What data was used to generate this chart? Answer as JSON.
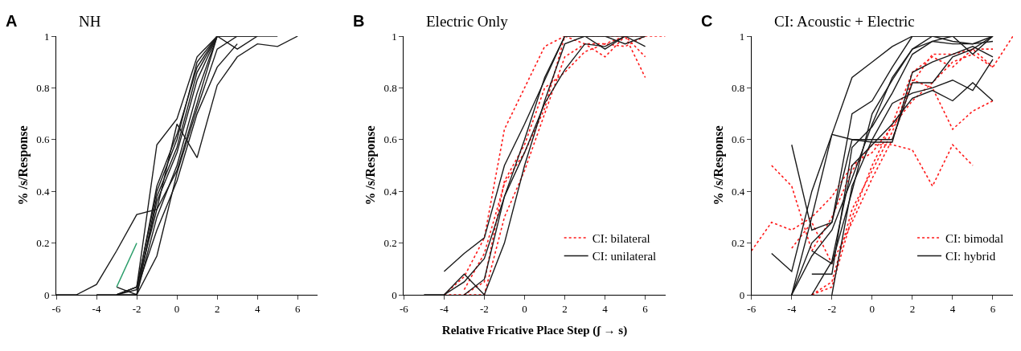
{
  "chart_data": [
    {
      "type": "line",
      "title": "NH",
      "ylabel": "% /s/Response",
      "annotations": [
        "A"
      ],
      "xlim": [
        -6,
        7
      ],
      "xticks": [
        -6,
        -4,
        -2,
        0,
        2,
        4,
        6
      ],
      "ylim": [
        0,
        1
      ],
      "yticks": [
        0,
        0.2,
        0.4,
        0.6,
        0.8,
        1
      ],
      "legend": false,
      "series": [
        {
          "color": "#1a1a1a",
          "line_style": "solid",
          "x": [
            -6,
            -5,
            -4,
            -3,
            -2,
            -1,
            0,
            1,
            2,
            3,
            4,
            5,
            6
          ],
          "values": [
            0,
            0,
            0.04,
            0.17,
            0.31,
            0.33,
            0.66,
            0.53,
            0.81,
            0.92,
            0.97,
            0.96,
            1
          ]
        },
        {
          "color": "#1a1a1a",
          "line_style": "solid",
          "x": [
            -3,
            -2,
            -1,
            0,
            1,
            2
          ],
          "values": [
            0,
            0.03,
            0.58,
            0.68,
            0.92,
            1
          ]
        },
        {
          "color": "#1a1a1a",
          "line_style": "solid",
          "x": [
            -3,
            -2,
            -1,
            0,
            1,
            2,
            3,
            4
          ],
          "values": [
            0,
            0.02,
            0.42,
            0.62,
            0.88,
            1,
            0.95,
            1
          ]
        },
        {
          "color": "#1a1a1a",
          "line_style": "solid",
          "x": [
            -3,
            -2,
            -1,
            0,
            1,
            2,
            3
          ],
          "values": [
            0,
            0,
            0.36,
            0.55,
            0.83,
            1,
            1
          ]
        },
        {
          "color": "#1a1a1a",
          "line_style": "solid",
          "x": [
            -2,
            -1,
            0,
            1,
            2
          ],
          "values": [
            0,
            0.3,
            0.5,
            0.78,
            1
          ]
        },
        {
          "color": "#1a1a1a",
          "line_style": "solid",
          "x": [
            -2,
            -1,
            0,
            1,
            2,
            3,
            4
          ],
          "values": [
            0,
            0.15,
            0.47,
            0.72,
            0.95,
            1,
            1
          ]
        },
        {
          "color": "#1a1a1a",
          "line_style": "solid",
          "x": [
            -3,
            -2,
            -1,
            0,
            1,
            2
          ],
          "values": [
            0.03,
            0,
            0.38,
            0.57,
            0.86,
            1
          ]
        },
        {
          "color": "#1a1a1a",
          "line_style": "solid",
          "x": [
            -2,
            -1,
            0,
            1,
            2,
            3
          ],
          "values": [
            0.02,
            0.25,
            0.44,
            0.7,
            0.88,
            0.97
          ]
        },
        {
          "color": "#1a1a1a",
          "line_style": "solid",
          "x": [
            -4,
            -3,
            -2,
            -1,
            0,
            1,
            2
          ],
          "values": [
            0,
            0,
            0.03,
            0.33,
            0.48,
            0.74,
            1
          ]
        },
        {
          "color": "#1a1a1a",
          "line_style": "solid",
          "x": [
            -3,
            -2,
            -1,
            0,
            1,
            2,
            3,
            4,
            5
          ],
          "values": [
            0,
            0.03,
            0.4,
            0.6,
            0.9,
            1,
            1,
            1,
            1
          ]
        },
        {
          "color": "#2a9d6a",
          "line_style": "solid",
          "x": [
            -3,
            -2
          ],
          "values": [
            0.03,
            0.2
          ]
        }
      ]
    },
    {
      "type": "line",
      "title": "Electric Only",
      "ylabel": "% /s/Response",
      "xlabel": "Relative Fricative Place Step (ʃ → s)",
      "annotations": [
        "B"
      ],
      "xlim": [
        -6,
        7
      ],
      "xticks": [
        -6,
        -4,
        -2,
        0,
        2,
        4,
        6
      ],
      "ylim": [
        0,
        1
      ],
      "yticks": [
        0,
        0.2,
        0.4,
        0.6,
        0.8,
        1
      ],
      "legend": "bottom right",
      "series": [
        {
          "name": "CI: bilateral",
          "color": "#ff1a1a",
          "line_style": "dotted",
          "x": [
            -4,
            -3,
            -2,
            -1,
            0,
            1,
            2,
            3,
            4,
            5,
            6,
            7
          ],
          "values": [
            0,
            0.07,
            0.22,
            0.64,
            0.8,
            0.96,
            1,
            1,
            1,
            1,
            1,
            1
          ]
        },
        {
          "color": "#ff1a1a",
          "line_style": "dotted",
          "x": [
            -3,
            -2,
            -1,
            0,
            1,
            2,
            3,
            4,
            5,
            6
          ],
          "values": [
            0,
            0,
            0.3,
            0.48,
            0.7,
            0.92,
            0.97,
            0.92,
            1,
            0.92
          ]
        },
        {
          "color": "#ff1a1a",
          "line_style": "dotted",
          "x": [
            -4,
            -3,
            -2,
            -1,
            0,
            1,
            2,
            3,
            4,
            5,
            6
          ],
          "values": [
            0,
            0,
            0.05,
            0.44,
            0.58,
            0.8,
            0.86,
            0.94,
            0.97,
            1,
            0.84
          ]
        },
        {
          "color": "#ff1a1a",
          "line_style": "dotted",
          "x": [
            -3,
            -2,
            -1,
            0,
            1,
            2,
            3,
            4,
            5,
            6
          ],
          "values": [
            0.02,
            0.16,
            0.43,
            0.55,
            0.72,
            1,
            0.97,
            0.97,
            0.96,
            1
          ]
        },
        {
          "name": "CI: unilateral",
          "color": "#1a1a1a",
          "line_style": "solid",
          "x": [
            -5,
            -4,
            -3,
            -2,
            -1,
            0,
            1,
            2,
            3,
            4,
            5,
            6
          ],
          "values": [
            0,
            0,
            0.08,
            0,
            0.2,
            0.5,
            0.75,
            0.97,
            1,
            0.95,
            1,
            0.96
          ]
        },
        {
          "color": "#1a1a1a",
          "line_style": "solid",
          "x": [
            -4,
            -3,
            -2,
            -1,
            0,
            1,
            2,
            3,
            4,
            5,
            6
          ],
          "values": [
            0.09,
            0.16,
            0.22,
            0.5,
            0.66,
            0.83,
            1,
            1,
            1,
            1,
            1
          ]
        },
        {
          "color": "#1a1a1a",
          "line_style": "solid",
          "x": [
            -4,
            -3,
            -2,
            -1,
            0,
            1,
            2,
            3,
            4,
            5,
            6
          ],
          "values": [
            0,
            0.05,
            0.14,
            0.38,
            0.6,
            0.84,
            1,
            1,
            1,
            0.97,
            1
          ]
        },
        {
          "color": "#1a1a1a",
          "line_style": "solid",
          "x": [
            -3,
            -2,
            -1,
            0,
            1,
            2,
            3,
            4,
            5
          ],
          "values": [
            0,
            0.06,
            0.38,
            0.55,
            0.74,
            0.87,
            0.97,
            0.96,
            1
          ]
        }
      ]
    },
    {
      "type": "line",
      "title": "CI: Acoustic + Electric",
      "ylabel": "% /s/Response",
      "annotations": [
        "C"
      ],
      "xlim": [
        -6,
        7
      ],
      "xticks": [
        -6,
        -4,
        -2,
        0,
        2,
        4,
        6
      ],
      "ylim": [
        0,
        1
      ],
      "yticks": [
        0,
        0.2,
        0.4,
        0.6,
        0.8,
        1
      ],
      "legend": "bottom right",
      "series": [
        {
          "name": "CI: bimodal",
          "color": "#ff1a1a",
          "line_style": "dotted",
          "x": [
            -6,
            -5,
            -4,
            -3,
            -2,
            -1,
            0,
            1,
            2,
            3,
            4,
            5,
            6,
            7
          ],
          "values": [
            0.17,
            0.28,
            0.25,
            0.3,
            0.38,
            0.5,
            0.55,
            0.65,
            0.75,
            0.82,
            0.9,
            0.93,
            0.88,
            1
          ]
        },
        {
          "color": "#ff1a1a",
          "line_style": "dotted",
          "x": [
            -5,
            -4,
            -3,
            -2,
            -1,
            0,
            1,
            2,
            3,
            4,
            5
          ],
          "values": [
            0.5,
            0.42,
            0.17,
            0.3,
            0.48,
            0.58,
            0.58,
            0.56,
            0.42,
            0.58,
            0.5
          ]
        },
        {
          "color": "#ff1a1a",
          "line_style": "dotted",
          "x": [
            -3,
            -2,
            -1,
            0,
            1,
            2,
            3,
            4,
            5,
            6
          ],
          "values": [
            0,
            0.05,
            0.33,
            0.48,
            0.63,
            0.83,
            0.8,
            0.64,
            0.71,
            0.75
          ]
        },
        {
          "color": "#ff1a1a",
          "line_style": "dotted",
          "x": [
            -3,
            -2,
            -1,
            0,
            1,
            2,
            3,
            4,
            5,
            6
          ],
          "values": [
            0,
            0.03,
            0.3,
            0.5,
            0.66,
            0.86,
            0.92,
            0.88,
            0.95,
            0.88
          ]
        },
        {
          "color": "#ff1a1a",
          "line_style": "dotted",
          "x": [
            -4,
            -3,
            -2,
            -1,
            0,
            1,
            2,
            3,
            4,
            5,
            6
          ],
          "values": [
            0.18,
            0.28,
            0.12,
            0.28,
            0.45,
            0.6,
            0.82,
            0.93,
            0.93,
            0.95,
            0.95
          ]
        },
        {
          "name": "CI: hybrid",
          "color": "#1a1a1a",
          "line_style": "solid",
          "x": [
            -5,
            -4,
            -3,
            -2,
            -1,
            0,
            1,
            2,
            3,
            4,
            5,
            6
          ],
          "values": [
            0.16,
            0.09,
            0.4,
            0.62,
            0.6,
            0.6,
            0.6,
            0.82,
            0.82,
            0.92,
            0.95,
            1
          ]
        },
        {
          "color": "#1a1a1a",
          "line_style": "solid",
          "x": [
            -4,
            -3,
            -2,
            -1,
            0,
            1,
            2,
            3,
            4,
            5,
            6
          ],
          "values": [
            0.58,
            0.25,
            0.28,
            0.6,
            0.59,
            0.59,
            0.86,
            0.9,
            0.93,
            0.96,
            0.92
          ]
        },
        {
          "color": "#1a1a1a",
          "line_style": "solid",
          "x": [
            -4,
            -3,
            -2,
            -1,
            0,
            1,
            2,
            3,
            4,
            5,
            6
          ],
          "values": [
            0,
            0.2,
            0.28,
            0.7,
            0.75,
            0.88,
            1,
            1,
            1,
            1,
            1
          ]
        },
        {
          "color": "#1a1a1a",
          "line_style": "solid",
          "x": [
            -4,
            -3,
            -2,
            -1,
            0,
            1,
            2,
            3,
            4,
            5,
            6
          ],
          "values": [
            0,
            0.15,
            0.25,
            0.45,
            0.66,
            0.84,
            0.95,
            0.98,
            0.97,
            0.97,
            0.98
          ]
        },
        {
          "color": "#1a1a1a",
          "line_style": "solid",
          "x": [
            -3,
            -2,
            -1,
            0,
            1,
            2,
            3,
            4,
            5,
            6
          ],
          "values": [
            0.08,
            0.08,
            0.57,
            0.65,
            0.78,
            0.93,
            0.98,
            1,
            0.93,
            1
          ]
        },
        {
          "color": "#1a1a1a",
          "line_style": "solid",
          "x": [
            -3,
            -2,
            -1,
            0,
            1,
            2,
            3,
            4,
            5,
            6
          ],
          "values": [
            0,
            0.13,
            0.5,
            0.58,
            0.66,
            0.76,
            0.79,
            0.75,
            0.82,
            0.75
          ]
        },
        {
          "color": "#1a1a1a",
          "line_style": "solid",
          "x": [
            -2,
            -1,
            0,
            1,
            2,
            3,
            4,
            5,
            6
          ],
          "values": [
            0,
            0.42,
            0.6,
            0.74,
            0.78,
            0.8,
            0.83,
            0.79,
            0.91
          ]
        },
        {
          "color": "#1a1a1a",
          "line_style": "solid",
          "x": [
            -3,
            -2,
            -1,
            0,
            1,
            2,
            3,
            4,
            5,
            6
          ],
          "values": [
            0.17,
            0.12,
            0.4,
            0.7,
            0.83,
            0.95,
            1,
            0.98,
            0.97,
            1
          ]
        },
        {
          "color": "#1a1a1a",
          "line_style": "solid",
          "x": [
            -4,
            -3,
            -2,
            -1,
            0,
            1,
            2,
            3,
            4,
            5,
            6
          ],
          "values": [
            0,
            0.3,
            0.62,
            0.84,
            0.9,
            0.96,
            1,
            1,
            1,
            1,
            1
          ]
        }
      ]
    }
  ]
}
